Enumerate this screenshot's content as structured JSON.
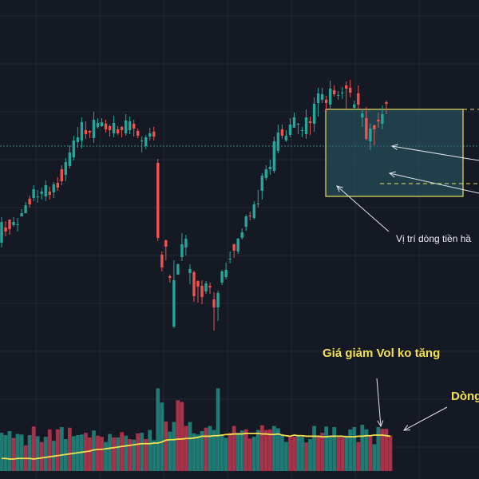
{
  "chart_data": {
    "type": "candlestick",
    "grid": true,
    "colors": {
      "background": "#151924",
      "grid": "#232733",
      "up": "#26a69a",
      "down": "#ef5350",
      "volume_up": "#1f7a73",
      "volume_down": "#a8324a",
      "volume_ma": "#f4e04d",
      "box_fill": "#2b5f6b",
      "box_border": "#e8df63",
      "dotted_line": "#3c7f86",
      "arrow": "#e0e4ea"
    },
    "price_range": [
      0,
      600
    ],
    "volume_range": [
      0,
      140
    ],
    "candles": [
      [
        -34,
        -8,
        -2,
        -40
      ],
      [
        -15,
        -20,
        -7,
        -26
      ],
      [
        -5,
        -17,
        -11,
        -24
      ],
      [
        -12,
        -8,
        -2,
        -14
      ],
      [
        -12,
        -11,
        -3,
        -20
      ],
      [
        -1,
        3,
        8,
        0
      ],
      [
        3,
        13,
        17,
        4
      ],
      [
        21,
        14,
        25,
        10
      ],
      [
        22,
        33,
        38,
        18
      ],
      [
        24,
        24,
        32,
        16
      ],
      [
        27,
        30,
        35,
        20
      ],
      [
        24,
        38,
        44,
        18
      ],
      [
        30,
        26,
        36,
        20
      ],
      [
        29,
        39,
        42,
        22
      ],
      [
        41,
        35,
        48,
        31
      ],
      [
        58,
        43,
        63,
        38
      ],
      [
        51,
        67,
        72,
        43
      ],
      [
        62,
        79,
        88,
        59
      ],
      [
        73,
        94,
        100,
        69
      ],
      [
        92,
        98,
        111,
        85
      ],
      [
        94,
        117,
        123,
        84
      ],
      [
        107,
        102,
        118,
        96
      ],
      [
        106,
        104,
        107,
        97
      ],
      [
        97,
        120,
        130,
        91
      ],
      [
        111,
        116,
        122,
        109
      ],
      [
        112,
        117,
        122,
        111
      ],
      [
        115,
        108,
        120,
        104
      ],
      [
        112,
        107,
        114,
        99
      ],
      [
        103,
        116,
        125,
        98
      ],
      [
        108,
        103,
        112,
        101
      ],
      [
        111,
        107,
        112,
        98
      ],
      [
        103,
        119,
        127,
        100
      ],
      [
        107,
        118,
        124,
        102
      ],
      [
        115,
        109,
        120,
        99
      ],
      [
        106,
        100,
        109,
        97
      ],
      [
        94,
        94,
        99,
        79
      ],
      [
        87,
        98,
        101,
        83
      ],
      [
        99,
        103,
        110,
        94
      ],
      [
        105,
        99,
        111,
        94
      ],
      [
        66,
        -28,
        71,
        -32
      ],
      [
        -49,
        -65,
        -45,
        -70
      ],
      [
        -31,
        -39,
        -30,
        -56
      ],
      [
        -76,
        -78,
        -74,
        -84
      ],
      [
        -139,
        -81,
        -56,
        -141
      ],
      [
        -74,
        -61,
        -60,
        -74
      ],
      [
        -52,
        -36,
        -22,
        -57
      ],
      [
        -40,
        -29,
        -24,
        -50
      ],
      [
        -72,
        -67,
        -61,
        -86
      ],
      [
        -71,
        -101,
        -69,
        -108
      ],
      [
        -82,
        -89,
        -81,
        -109
      ],
      [
        -88,
        -102,
        -81,
        -111
      ],
      [
        -95,
        -85,
        -82,
        -98
      ],
      [
        -88,
        -90,
        -84,
        -98
      ],
      [
        -105,
        -115,
        -96,
        -144
      ],
      [
        -115,
        -97,
        -94,
        -132
      ],
      [
        -84,
        -70,
        -68,
        -87
      ],
      [
        -77,
        -68,
        -59,
        -80
      ],
      [
        -54,
        -54,
        -45,
        -60
      ],
      [
        -36,
        -44,
        -35,
        -53
      ],
      [
        -45,
        -29,
        -28,
        -48
      ],
      [
        -28,
        -21,
        -16,
        -30
      ],
      [
        -14,
        -1,
        1,
        -19
      ],
      [
        0,
        -1,
        5,
        -6
      ],
      [
        -3,
        14,
        18,
        -5
      ],
      [
        15,
        15,
        32,
        10
      ],
      [
        31,
        50,
        53,
        20
      ],
      [
        47,
        58,
        63,
        44
      ],
      [
        58,
        61,
        70,
        51
      ],
      [
        56,
        93,
        99,
        53
      ],
      [
        81,
        104,
        114,
        78
      ],
      [
        108,
        100,
        114,
        96
      ],
      [
        94,
        100,
        107,
        92
      ],
      [
        101,
        114,
        122,
        98
      ],
      [
        110,
        123,
        129,
        111
      ],
      [
        114,
        115,
        116,
        102
      ],
      [
        106,
        107,
        111,
        98
      ],
      [
        102,
        123,
        133,
        96
      ],
      [
        118,
        116,
        124,
        101
      ],
      [
        115,
        140,
        148,
        105
      ],
      [
        141,
        153,
        160,
        124
      ],
      [
        145,
        152,
        160,
        141
      ],
      [
        145,
        141,
        150,
        131
      ],
      [
        139,
        159,
        169,
        132
      ],
      [
        157,
        152,
        163,
        149
      ],
      [
        151,
        151,
        156,
        145
      ],
      [
        153,
        154,
        161,
        146
      ],
      [
        163,
        159,
        168,
        133
      ],
      [
        160,
        154,
        170,
        148
      ],
      [
        135,
        139,
        144,
        132
      ],
      [
        153,
        139,
        163,
        134
      ],
      [
        123,
        128,
        134,
        111
      ],
      [
        122,
        96,
        136,
        94
      ],
      [
        93,
        109,
        115,
        82
      ],
      [
        113,
        108,
        114,
        88
      ],
      [
        120,
        118,
        129,
        110
      ],
      [
        115,
        127,
        138,
        108
      ],
      [
        142,
        140,
        144,
        127
      ]
    ],
    "volumes": [
      [
        67,
        1
      ],
      [
        63,
        1
      ],
      [
        70,
        1
      ],
      [
        58,
        0
      ],
      [
        65,
        1
      ],
      [
        64,
        1
      ],
      [
        45,
        0
      ],
      [
        63,
        1
      ],
      [
        78,
        0
      ],
      [
        61,
        1
      ],
      [
        51,
        0
      ],
      [
        60,
        1
      ],
      [
        73,
        0
      ],
      [
        53,
        1
      ],
      [
        73,
        0
      ],
      [
        77,
        1
      ],
      [
        56,
        1
      ],
      [
        76,
        0
      ],
      [
        61,
        1
      ],
      [
        63,
        1
      ],
      [
        64,
        1
      ],
      [
        67,
        0
      ],
      [
        59,
        0
      ],
      [
        71,
        1
      ],
      [
        62,
        0
      ],
      [
        60,
        0
      ],
      [
        51,
        1
      ],
      [
        65,
        1
      ],
      [
        59,
        0
      ],
      [
        59,
        1
      ],
      [
        68,
        0
      ],
      [
        62,
        1
      ],
      [
        56,
        0
      ],
      [
        55,
        1
      ],
      [
        66,
        0
      ],
      [
        67,
        1
      ],
      [
        56,
        0
      ],
      [
        72,
        1
      ],
      [
        54,
        1
      ],
      [
        145,
        1
      ],
      [
        120,
        1
      ],
      [
        87,
        0
      ],
      [
        69,
        1
      ],
      [
        86,
        1
      ],
      [
        124,
        0
      ],
      [
        121,
        0
      ],
      [
        79,
        0
      ],
      [
        86,
        1
      ],
      [
        66,
        1
      ],
      [
        64,
        1
      ],
      [
        70,
        1
      ],
      [
        76,
        0
      ],
      [
        79,
        1
      ],
      [
        72,
        1
      ],
      [
        145,
        1
      ],
      [
        64,
        1
      ],
      [
        58,
        1
      ],
      [
        67,
        0
      ],
      [
        79,
        0
      ],
      [
        67,
        1
      ],
      [
        71,
        1
      ],
      [
        73,
        0
      ],
      [
        57,
        0
      ],
      [
        60,
        1
      ],
      [
        72,
        1
      ],
      [
        80,
        0
      ],
      [
        72,
        0
      ],
      [
        73,
        0
      ],
      [
        79,
        1
      ],
      [
        75,
        1
      ],
      [
        62,
        1
      ],
      [
        51,
        1
      ],
      [
        60,
        0
      ],
      [
        60,
        0
      ],
      [
        61,
        1
      ],
      [
        60,
        1
      ],
      [
        50,
        0
      ],
      [
        56,
        1
      ],
      [
        79,
        1
      ],
      [
        62,
        0
      ],
      [
        67,
        0
      ],
      [
        78,
        1
      ],
      [
        62,
        1
      ],
      [
        77,
        1
      ],
      [
        59,
        0
      ],
      [
        59,
        0
      ],
      [
        62,
        1
      ],
      [
        73,
        1
      ],
      [
        77,
        1
      ],
      [
        51,
        0
      ],
      [
        81,
        1
      ],
      [
        73,
        1
      ],
      [
        62,
        0
      ],
      [
        47,
        1
      ],
      [
        77,
        1
      ],
      [
        74,
        0
      ],
      [
        74,
        0
      ],
      [
        62,
        0
      ]
    ],
    "volume_ma": [
      22,
      22,
      21,
      21,
      22,
      22,
      22,
      22,
      21,
      22,
      23,
      24,
      25,
      26,
      27,
      28,
      29,
      30,
      31,
      32,
      33,
      34,
      35,
      37,
      38,
      38,
      39,
      40,
      41,
      42,
      43,
      44,
      45,
      46,
      47,
      48,
      48,
      48,
      49,
      49,
      51,
      54,
      55,
      55,
      56,
      56,
      57,
      57,
      58,
      59,
      61,
      61,
      61,
      62,
      62,
      63,
      64,
      64,
      65,
      65,
      65,
      66,
      66,
      66,
      66,
      65,
      65,
      64,
      64,
      65,
      63,
      62,
      61,
      63,
      62,
      62,
      61,
      61,
      61,
      61,
      60,
      60,
      61,
      61,
      61,
      61,
      60,
      60,
      60,
      61,
      61,
      62,
      62,
      63,
      63,
      63,
      62,
      61
    ],
    "annotations": {
      "inflow_position": "Vị trí dòng tiền hầ",
      "price_down_vol_flat": "Giá giảm Vol ko tăng",
      "flow_label": "Dòng"
    }
  }
}
